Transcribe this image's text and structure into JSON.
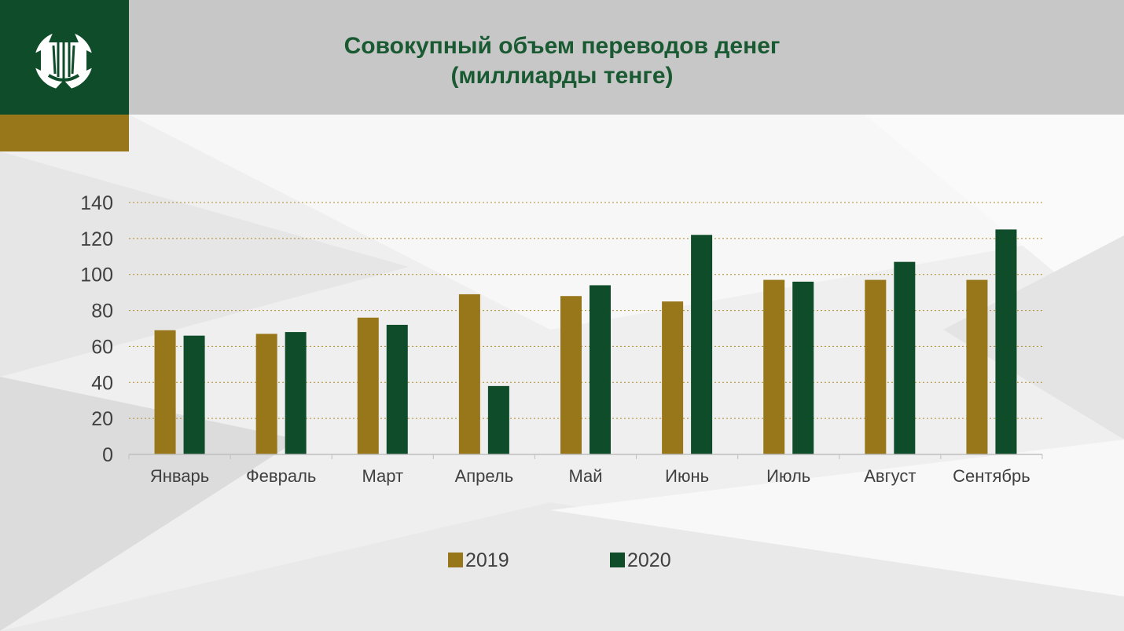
{
  "header": {
    "title_line1": "Совокупный объем переводов денег",
    "title_line2": "(миллиарды тенге)"
  },
  "colors": {
    "green": "#0f4c2a",
    "gold": "#98761a",
    "header_gray": "#c8c7c7",
    "title_green": "#1a5a32"
  },
  "logo": {
    "icon": "national-bank-emblem-icon"
  },
  "chart_data": {
    "type": "bar",
    "categories": [
      "Январь",
      "Февраль",
      "Март",
      "Апрель",
      "Май",
      "Июнь",
      "Июль",
      "Август",
      "Сентябрь"
    ],
    "series": [
      {
        "name": "2019",
        "color": "#98761a",
        "values": [
          69,
          67,
          76,
          89,
          88,
          85,
          97,
          97,
          97
        ]
      },
      {
        "name": "2020",
        "color": "#0f4c2a",
        "values": [
          66,
          68,
          72,
          38,
          94,
          122,
          96,
          107,
          125
        ]
      }
    ],
    "ylim": [
      0,
      140
    ],
    "yticks": [
      0,
      20,
      40,
      60,
      80,
      100,
      120,
      140
    ],
    "grid": true,
    "legend_position": "bottom"
  }
}
